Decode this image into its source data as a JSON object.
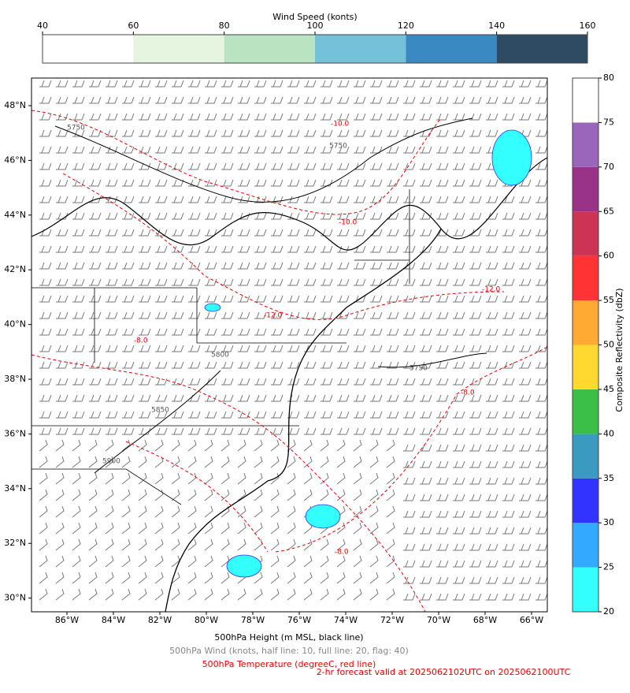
{
  "wind_colorbar": {
    "title": "Wind Speed (konts)",
    "ticks": [
      40,
      60,
      80,
      100,
      120,
      140,
      160
    ],
    "colors": [
      "#ffffff",
      "#e5f5e0",
      "#b9e3c1",
      "#74c1d9",
      "#3b89c3",
      "#2f4a63"
    ]
  },
  "reflectivity_colorbar": {
    "label": "Composite Reflectivity (dbZ)",
    "ticks": [
      20,
      25,
      30,
      35,
      40,
      45,
      50,
      55,
      60,
      65,
      70,
      75,
      80
    ],
    "colors": [
      "#33ffff",
      "#33aaff",
      "#3333ff",
      "#3a9ac0",
      "#3bbf47",
      "#ffd92f",
      "#ffaa33",
      "#ff3333",
      "#cc3355",
      "#993388",
      "#9966bb",
      "#ffffff"
    ]
  },
  "map": {
    "x_tick_labels": [
      "86°W",
      "84°W",
      "82°W",
      "80°W",
      "78°W",
      "76°W",
      "74°W",
      "72°W",
      "70°W",
      "68°W",
      "66°W"
    ],
    "y_tick_labels": [
      "48°N",
      "46°N",
      "44°N",
      "42°N",
      "40°N",
      "38°N",
      "36°N",
      "34°N",
      "32°N",
      "30°N"
    ],
    "contour_labels": [
      "5750",
      "5750",
      "5750",
      "5800",
      "5850",
      "5900",
      "-10.0",
      "-10.0",
      "-12.0",
      "-12.0",
      "-8.0",
      "-8.0",
      "-8.0"
    ]
  },
  "footer": {
    "height_note": "500hPa Height (m MSL, black line)",
    "wind_note": "500hPa Wind (knots, half line: 10, full line: 20, flag: 40)",
    "temperature_note": "500hPa Temperature (degreeC, red line)",
    "forecast_note": "2-hr forecast valid at 2025062102UTC on 2025062100UTC"
  }
}
